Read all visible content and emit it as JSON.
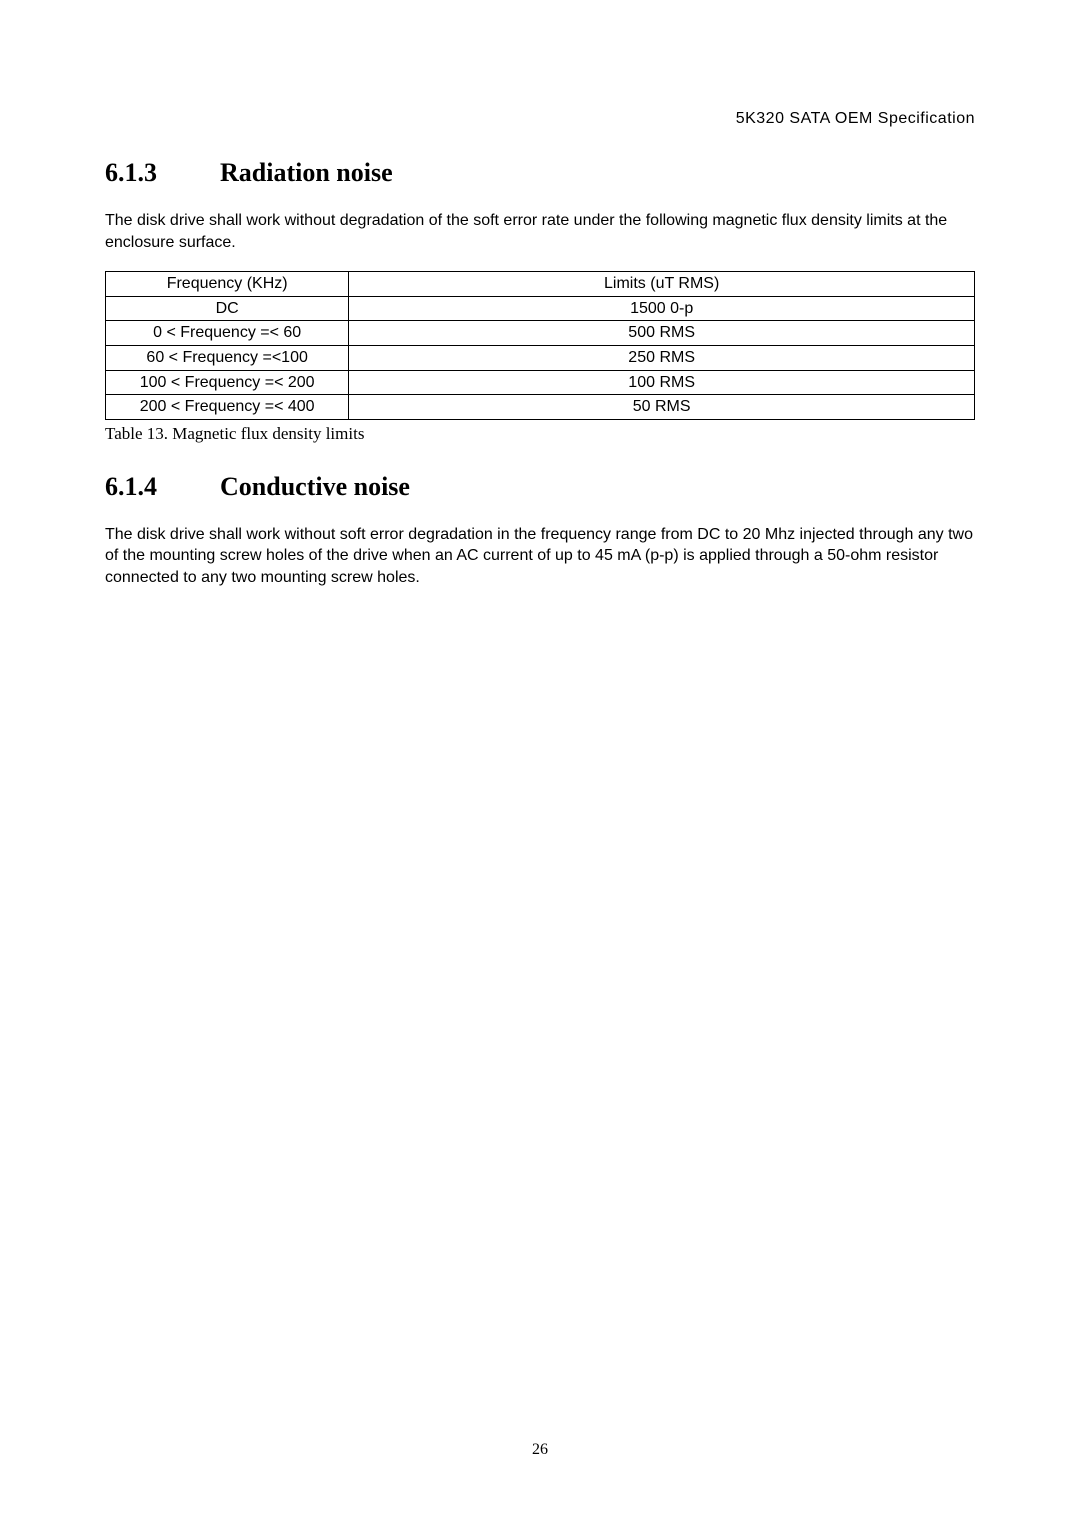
{
  "header": {
    "doc_title": "5K320 SATA OEM Specification"
  },
  "section_radiation": {
    "number": "6.1.3",
    "title": "Radiation noise",
    "body": "The disk drive shall work without degradation of the soft error rate under the following magnetic flux density limits at the enclosure surface."
  },
  "table": {
    "columns": [
      "Frequency (KHz)",
      "Limits (uT RMS)"
    ],
    "rows": [
      [
        "DC",
        "1500 0-p"
      ],
      [
        "0 < Frequency =< 60",
        "500 RMS"
      ],
      [
        "60 < Frequency =<100",
        "250 RMS"
      ],
      [
        "100 < Frequency =< 200",
        "100 RMS"
      ],
      [
        "200 < Frequency =< 400",
        "50 RMS"
      ]
    ],
    "caption": "Table 13. Magnetic flux density limits",
    "col_widths_pct": [
      28,
      72
    ],
    "border_color": "#000000",
    "background_color": "#ffffff",
    "text_align": "center",
    "font_size_pt": 12
  },
  "section_conductive": {
    "number": "6.1.4",
    "title": "Conductive noise",
    "body": "The disk drive shall work without soft error degradation in the frequency range from DC to 20 Mhz injected through any two of the mounting screw holes of the drive when an AC current of up to 45 mA (p-p) is applied through a 50-ohm resistor connected to any two mounting screw holes."
  },
  "page_number": "26",
  "styling": {
    "page_bg": "#ffffff",
    "text_color": "#000000",
    "heading_font": "Times New Roman",
    "body_font": "Arial",
    "heading_fontsize_pt": 20,
    "body_fontsize_pt": 12
  }
}
